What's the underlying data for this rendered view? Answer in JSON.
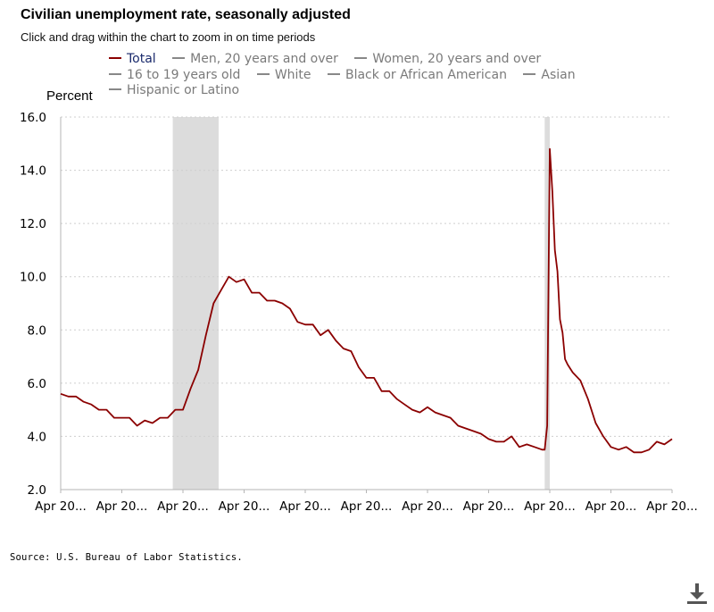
{
  "header": {
    "title": "Civilian unemployment rate, seasonally adjusted",
    "subtitle": "Click and drag within the chart to zoom in on time periods"
  },
  "legend": {
    "items": [
      {
        "label": "Total",
        "active": true
      },
      {
        "label": "Men, 20 years and over",
        "active": false
      },
      {
        "label": "Women, 20 years and over",
        "active": false
      },
      {
        "label": "16 to 19 years old",
        "active": false
      },
      {
        "label": "White",
        "active": false
      },
      {
        "label": "Black or African American",
        "active": false
      },
      {
        "label": "Asian",
        "active": false
      },
      {
        "label": "Hispanic or Latino",
        "active": false
      }
    ]
  },
  "footer": {
    "source": "Source: U.S. Bureau of Labor Statistics."
  },
  "icons": {
    "download": "download-icon"
  },
  "colors": {
    "series_total": "#8b0000",
    "recession_band": "#dcdcdc",
    "inactive_legend": "#7a7a7a",
    "active_legend": "#1a2a6c"
  },
  "chart_data": {
    "type": "line",
    "title": "Civilian unemployment rate, seasonally adjusted",
    "ylabel": "Percent",
    "xlabel": "",
    "ylim": [
      2.0,
      16.0
    ],
    "yticks": [
      2.0,
      4.0,
      6.0,
      8.0,
      10.0,
      12.0,
      14.0,
      16.0
    ],
    "xtick_labels": [
      "Apr 20...",
      "Apr 20...",
      "Apr 20...",
      "Apr 20...",
      "Apr 20...",
      "Apr 20...",
      "Apr 20...",
      "Apr 20...",
      "Apr 20...",
      "Apr 20...",
      "Apr 20..."
    ],
    "x_start": "2004-04",
    "x_end": "2024-04",
    "grid": "horizontal dotted",
    "recession_shading": [
      {
        "start": "2007-12",
        "end": "2009-06"
      },
      {
        "start": "2020-02",
        "end": "2020-04"
      }
    ],
    "series": [
      {
        "name": "Total",
        "x": [
          "2004-04",
          "2004-07",
          "2004-10",
          "2005-01",
          "2005-04",
          "2005-07",
          "2005-10",
          "2006-01",
          "2006-04",
          "2006-07",
          "2006-10",
          "2007-01",
          "2007-04",
          "2007-07",
          "2007-10",
          "2008-01",
          "2008-04",
          "2008-07",
          "2008-10",
          "2009-01",
          "2009-04",
          "2009-07",
          "2009-10",
          "2010-01",
          "2010-04",
          "2010-07",
          "2010-10",
          "2011-01",
          "2011-04",
          "2011-07",
          "2011-10",
          "2012-01",
          "2012-04",
          "2012-07",
          "2012-10",
          "2013-01",
          "2013-04",
          "2013-07",
          "2013-10",
          "2014-01",
          "2014-04",
          "2014-07",
          "2014-10",
          "2015-01",
          "2015-04",
          "2015-07",
          "2015-10",
          "2016-01",
          "2016-04",
          "2016-07",
          "2016-10",
          "2017-01",
          "2017-04",
          "2017-07",
          "2017-10",
          "2018-01",
          "2018-04",
          "2018-07",
          "2018-10",
          "2019-01",
          "2019-04",
          "2019-07",
          "2019-10",
          "2020-01",
          "2020-02",
          "2020-03",
          "2020-04",
          "2020-05",
          "2020-06",
          "2020-07",
          "2020-08",
          "2020-09",
          "2020-10",
          "2020-11",
          "2021-01",
          "2021-04",
          "2021-07",
          "2021-10",
          "2022-01",
          "2022-04",
          "2022-07",
          "2022-10",
          "2023-01",
          "2023-04",
          "2023-07",
          "2023-10",
          "2024-01",
          "2024-04"
        ],
        "values": [
          5.6,
          5.5,
          5.5,
          5.3,
          5.2,
          5.0,
          5.0,
          4.7,
          4.7,
          4.7,
          4.4,
          4.6,
          4.5,
          4.7,
          4.7,
          5.0,
          5.0,
          5.8,
          6.5,
          7.8,
          9.0,
          9.5,
          10.0,
          9.8,
          9.9,
          9.4,
          9.4,
          9.1,
          9.1,
          9.0,
          8.8,
          8.3,
          8.2,
          8.2,
          7.8,
          8.0,
          7.6,
          7.3,
          7.2,
          6.6,
          6.2,
          6.2,
          5.7,
          5.7,
          5.4,
          5.2,
          5.0,
          4.9,
          5.1,
          4.9,
          4.8,
          4.7,
          4.4,
          4.3,
          4.2,
          4.1,
          3.9,
          3.8,
          3.8,
          4.0,
          3.6,
          3.7,
          3.6,
          3.5,
          3.5,
          4.4,
          14.8,
          13.2,
          11.0,
          10.2,
          8.4,
          7.9,
          6.9,
          6.7,
          6.4,
          6.1,
          5.4,
          4.5,
          4.0,
          3.6,
          3.5,
          3.6,
          3.4,
          3.4,
          3.5,
          3.8,
          3.7,
          3.9
        ]
      }
    ]
  }
}
